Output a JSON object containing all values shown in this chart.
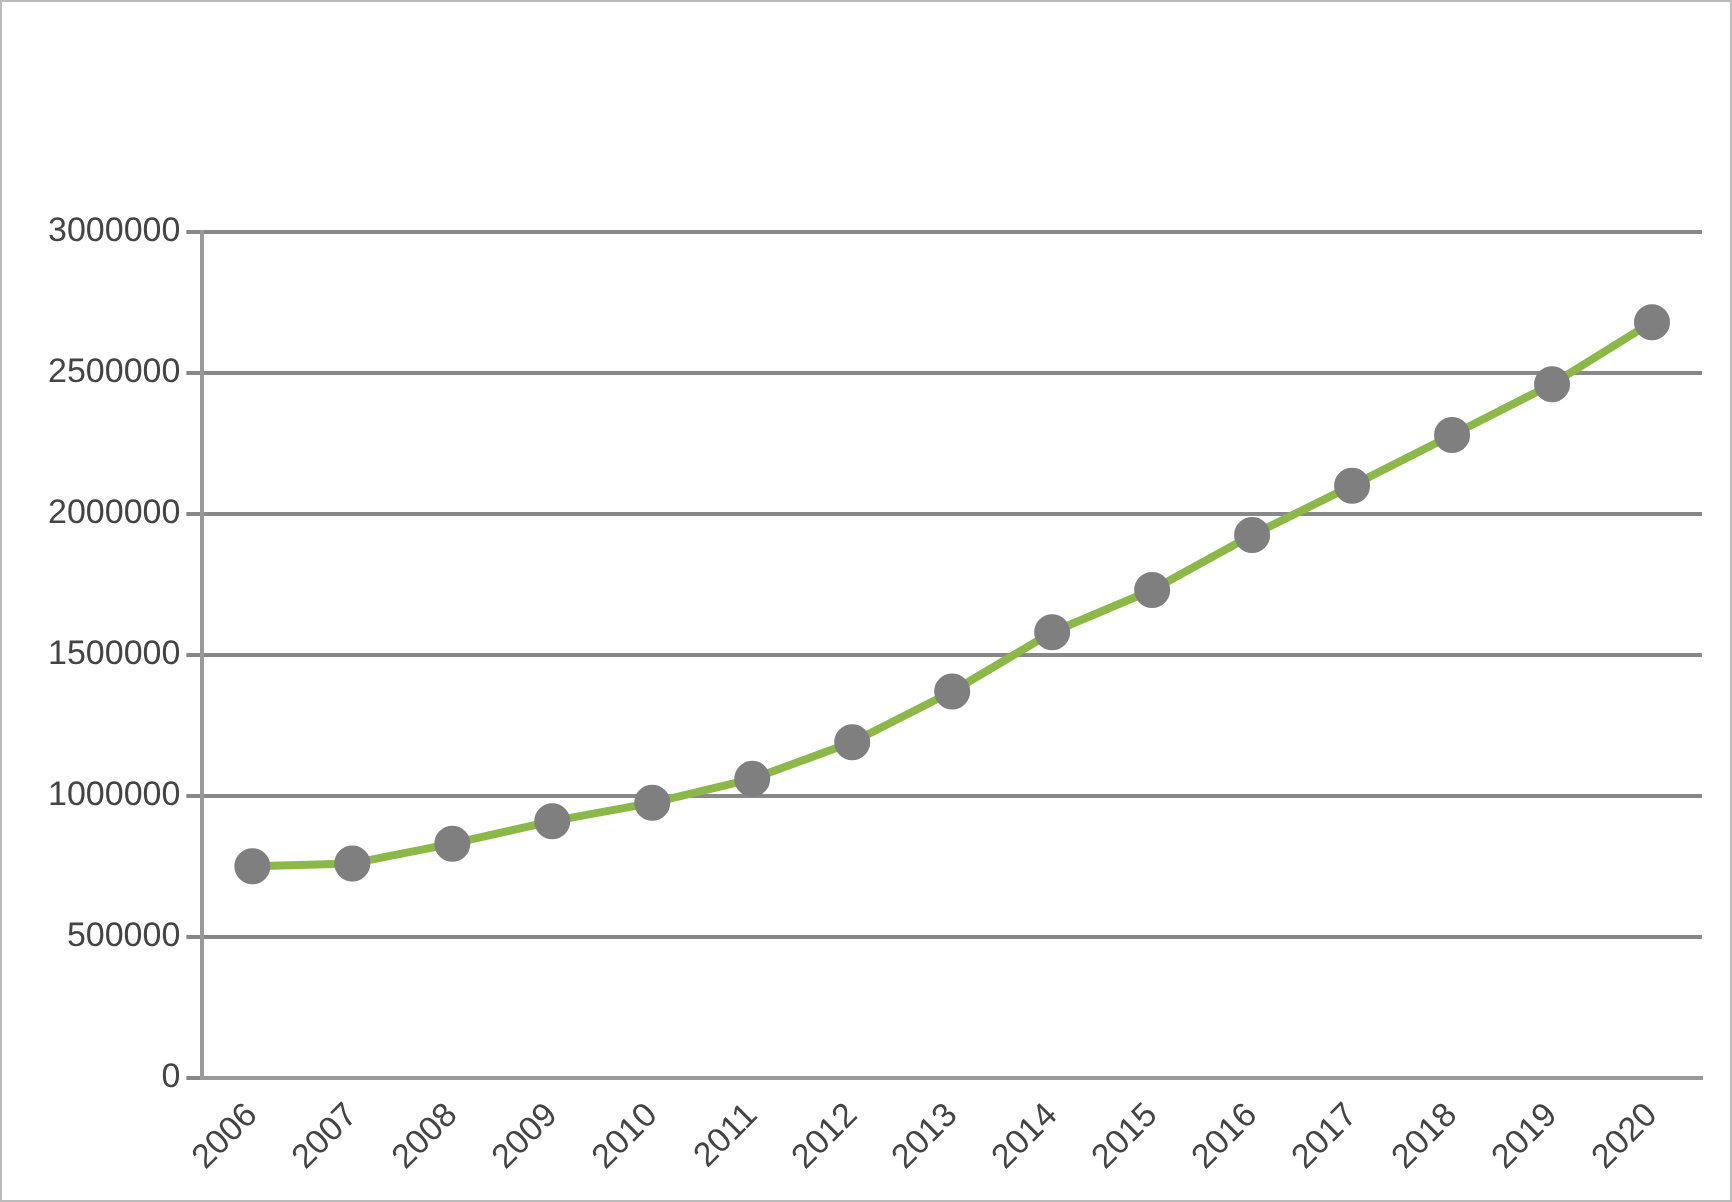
{
  "chart_data": {
    "type": "line",
    "categories": [
      "2006",
      "2007",
      "2008",
      "2009",
      "2010",
      "2011",
      "2012",
      "2013",
      "2014",
      "2015",
      "2016",
      "2017",
      "2018",
      "2019",
      "2020"
    ],
    "series": [
      {
        "color": "#8cb84a",
        "values": [
          750000,
          760000,
          830000,
          910000,
          975000,
          1060000,
          1190000,
          1370000,
          1580000,
          1730000,
          1925000,
          2100000,
          2280000,
          2460000,
          2680000
        ]
      }
    ],
    "ylim": [
      0,
      3000000
    ],
    "yticks": [
      0,
      500000,
      1000000,
      1500000,
      2000000,
      2500000,
      3000000
    ],
    "grid": "y",
    "legend": false,
    "marker": "circle",
    "line_style": "solid"
  }
}
